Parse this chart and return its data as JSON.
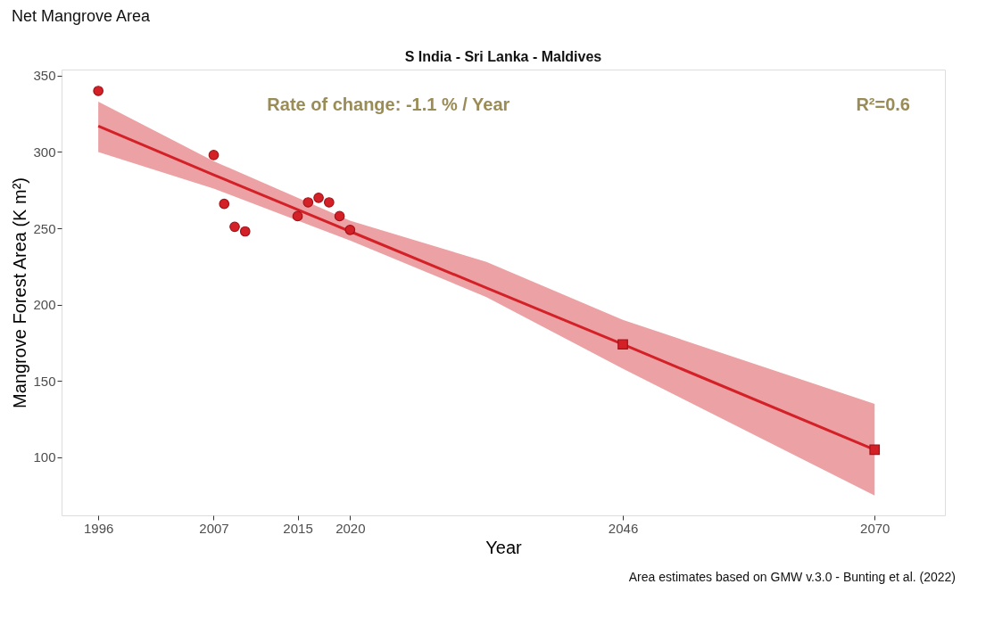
{
  "chart_data": {
    "type": "scatter",
    "title": "Net Mangrove Area",
    "subtitle": "S India - Sri Lanka - Maldives",
    "xlabel": "Year",
    "ylabel": "Mangrove Forest Area (K m²)",
    "annotations": [
      "Rate of change: -1.1 % / Year",
      "R²=0.6",
      "Area estimates based on GMW v.3.0 - Bunting et al. (2022)"
    ],
    "xlim": [
      1992.5,
      2076.7
    ],
    "xticks": [
      1996,
      2007,
      2015,
      2020,
      2046,
      2070
    ],
    "ylim": [
      62,
      354
    ],
    "yticks": [
      100,
      150,
      200,
      250,
      300,
      350
    ],
    "grid": false,
    "legend": false,
    "series": [
      {
        "type": "line",
        "color": "#d42027",
        "x": [
          1996,
          2007,
          2020,
          2033,
          2046,
          2070
        ],
        "values": [
          317,
          285,
          248,
          211,
          174,
          105
        ],
        "marker": "none",
        "line_style": "solid",
        "lower": [
          300,
          276,
          242,
          205,
          158,
          75
        ],
        "upper": [
          333,
          294,
          255,
          228,
          190,
          135
        ]
      },
      {
        "color": "#d42027",
        "marker": "circle",
        "x": [
          1996,
          2007,
          2008,
          2009,
          2010,
          2015,
          2016,
          2017,
          2018,
          2019,
          2020
        ],
        "values": [
          340,
          298,
          266,
          251,
          248,
          258,
          267,
          270,
          267,
          258,
          249
        ]
      },
      {
        "color": "#d42027",
        "marker": "square",
        "x": [
          2046,
          2070
        ],
        "values": [
          174,
          105
        ]
      }
    ]
  }
}
